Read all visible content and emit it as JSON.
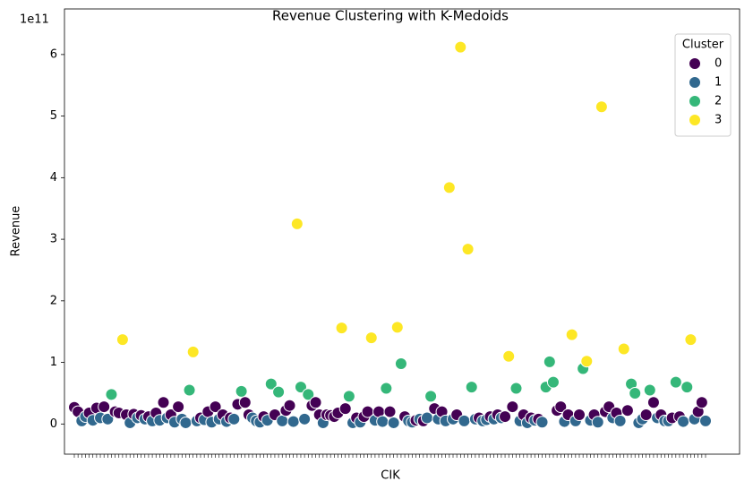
{
  "chart_data": {
    "type": "scatter",
    "title": "Revenue Clustering with K-Medoids",
    "x_label": "CIK",
    "y_label": "Revenue",
    "y_offset_label": "1e11",
    "categories": [
      null,
      null,
      null,
      null,
      null,
      null,
      null,
      null,
      null,
      null,
      null,
      null,
      null,
      null,
      null,
      null,
      null,
      null,
      null,
      null,
      null,
      null,
      null,
      null,
      null,
      null,
      null,
      null,
      null,
      null,
      null,
      null,
      null,
      null,
      null,
      null,
      null,
      null,
      null,
      null,
      null,
      null,
      null,
      null,
      null,
      null,
      null,
      null,
      null,
      null,
      null,
      null,
      null,
      null,
      null,
      null,
      null,
      null,
      null,
      null,
      null,
      null,
      null,
      null,
      null,
      null,
      null,
      null,
      null,
      null,
      null,
      null,
      null,
      null,
      null,
      null,
      null,
      null,
      null,
      null,
      null,
      null,
      null,
      null,
      null,
      null,
      null,
      null,
      null,
      null,
      null,
      null,
      null,
      null,
      null,
      null,
      null,
      null,
      null,
      null,
      null,
      null,
      null,
      null,
      null,
      null,
      null,
      null,
      null,
      null,
      null,
      null,
      null,
      null,
      null,
      null,
      null,
      null,
      null,
      null,
      null,
      null,
      null,
      null,
      null,
      null,
      null,
      null,
      null,
      null,
      null,
      null,
      null,
      null,
      null,
      null,
      null,
      null,
      null,
      null,
      null,
      null,
      null,
      null,
      null,
      null,
      null,
      null,
      null,
      null,
      null,
      null,
      null,
      null,
      null,
      null,
      null,
      null,
      null,
      null,
      null,
      null,
      null,
      null,
      null,
      null,
      null,
      null,
      null,
      null,
      null
    ],
    "values": [
      0.27,
      0.2,
      0.05,
      0.12,
      0.18,
      0.06,
      0.26,
      0.1,
      0.28,
      0.08,
      0.48,
      0.2,
      0.18,
      1.37,
      0.15,
      0.02,
      0.16,
      0.1,
      0.14,
      0.08,
      0.12,
      0.05,
      0.18,
      0.06,
      0.35,
      0.1,
      0.15,
      0.03,
      0.28,
      0.08,
      0.02,
      0.55,
      1.17,
      0.05,
      0.1,
      0.07,
      0.2,
      0.03,
      0.28,
      0.08,
      0.15,
      0.04,
      0.1,
      0.08,
      0.32,
      0.53,
      0.35,
      0.15,
      0.1,
      0.05,
      0.03,
      0.12,
      0.06,
      0.65,
      0.15,
      0.52,
      0.05,
      0.22,
      0.3,
      0.04,
      3.25,
      0.6,
      0.08,
      0.48,
      0.3,
      0.35,
      0.15,
      0.02,
      0.15,
      0.14,
      0.12,
      0.18,
      1.56,
      0.25,
      0.45,
      0.02,
      0.1,
      0.03,
      0.12,
      0.2,
      1.4,
      0.06,
      0.2,
      0.04,
      0.58,
      0.2,
      0.02,
      1.57,
      0.98,
      0.12,
      0.05,
      0.03,
      0.06,
      0.08,
      0.05,
      0.1,
      0.45,
      0.25,
      0.08,
      0.2,
      0.05,
      3.84,
      0.08,
      0.15,
      6.12,
      0.05,
      2.84,
      0.6,
      0.08,
      0.1,
      0.05,
      0.07,
      0.12,
      0.08,
      0.15,
      0.1,
      0.12,
      1.1,
      0.28,
      0.58,
      0.05,
      0.15,
      0.02,
      0.1,
      0.06,
      0.08,
      0.03,
      0.6,
      1.01,
      0.68,
      0.22,
      0.28,
      0.04,
      0.15,
      1.45,
      0.05,
      0.15,
      0.9,
      1.02,
      0.06,
      0.15,
      0.03,
      5.15,
      0.2,
      0.28,
      0.1,
      0.18,
      0.05,
      1.22,
      0.22,
      0.65,
      0.5,
      0.02,
      0.08,
      0.15,
      0.55,
      0.35,
      0.1,
      0.15,
      0.05,
      0.05,
      0.1,
      0.68,
      0.12,
      0.04,
      0.6,
      1.37,
      0.08,
      0.2,
      0.35,
      0.05
    ],
    "clusters": [
      0,
      0,
      1,
      1,
      0,
      1,
      0,
      1,
      0,
      1,
      2,
      0,
      0,
      3,
      0,
      1,
      0,
      1,
      0,
      1,
      0,
      1,
      0,
      1,
      0,
      1,
      0,
      1,
      0,
      1,
      1,
      2,
      3,
      1,
      0,
      1,
      0,
      1,
      0,
      1,
      0,
      1,
      0,
      1,
      0,
      2,
      0,
      0,
      1,
      1,
      1,
      0,
      1,
      2,
      0,
      2,
      1,
      0,
      0,
      1,
      3,
      2,
      1,
      2,
      0,
      0,
      0,
      1,
      0,
      0,
      0,
      0,
      3,
      0,
      2,
      1,
      0,
      1,
      0,
      0,
      3,
      1,
      0,
      1,
      2,
      0,
      1,
      3,
      2,
      0,
      1,
      1,
      0,
      1,
      0,
      1,
      2,
      0,
      1,
      0,
      1,
      3,
      1,
      0,
      3,
      1,
      3,
      2,
      1,
      0,
      1,
      1,
      0,
      1,
      0,
      1,
      0,
      3,
      0,
      2,
      1,
      0,
      1,
      0,
      1,
      0,
      1,
      2,
      2,
      2,
      0,
      0,
      1,
      0,
      3,
      1,
      0,
      2,
      3,
      1,
      0,
      1,
      3,
      0,
      0,
      1,
      0,
      1,
      3,
      0,
      2,
      2,
      1,
      1,
      0,
      2,
      0,
      1,
      0,
      1,
      1,
      0,
      2,
      0,
      1,
      2,
      3,
      1,
      0,
      0,
      1
    ],
    "legend": {
      "title": "Cluster",
      "position": "upper right",
      "entries": [
        {
          "name": "0",
          "color": "#440154"
        },
        {
          "name": "1",
          "color": "#31688e"
        },
        {
          "name": "2",
          "color": "#35b779"
        },
        {
          "name": "3",
          "color": "#fde725"
        }
      ]
    },
    "ylim": [
      -0.49,
      6.74
    ],
    "yticks": [
      0,
      1,
      2,
      3,
      4,
      5,
      6
    ]
  }
}
